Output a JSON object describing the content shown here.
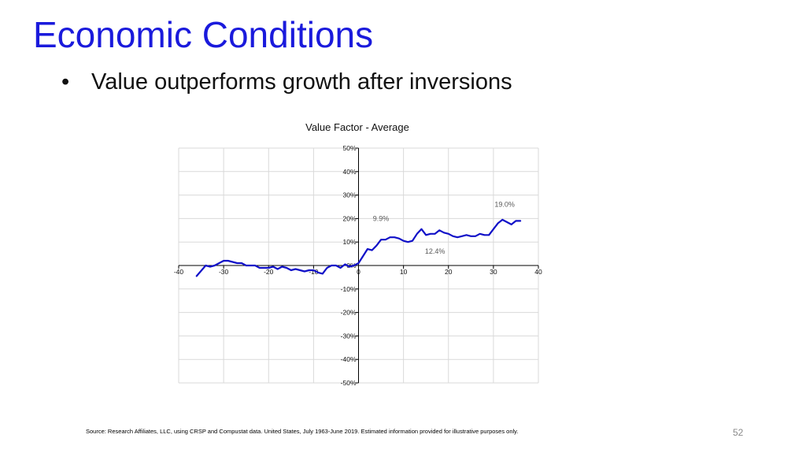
{
  "slide": {
    "title": "Economic Conditions",
    "bullet_symbol": "•",
    "bullet": "Value outperforms growth after inversions",
    "source": "Source: Research Affiliates, LLC, using CRSP and Compustat data. United States, July 1963-June 2019. Estimated information provided for illustrative purposes only.",
    "page_number": "52"
  },
  "colors": {
    "title": "#1a1adc",
    "series_line": "#1010c8",
    "gridline": "#d9d9d9",
    "axis": "#000000",
    "annotation": "#595959"
  },
  "chart_data": {
    "type": "line",
    "title": "Value Factor - Average",
    "xlabel": "",
    "ylabel": "",
    "xlim": [
      -40,
      40
    ],
    "ylim": [
      -0.5,
      0.5
    ],
    "x_ticks": [
      -40,
      -30,
      -20,
      -10,
      0,
      10,
      20,
      30,
      40
    ],
    "y_ticks": [
      -0.5,
      -0.4,
      -0.3,
      -0.2,
      -0.1,
      0,
      0.1,
      0.2,
      0.3,
      0.4,
      0.5
    ],
    "x_tick_labels": [
      "-40",
      "-30",
      "-20",
      "-10",
      "0",
      "10",
      "20",
      "30",
      "40"
    ],
    "y_tick_labels": [
      "-50%",
      "-40%",
      "-30%",
      "-20%",
      "-10%",
      "0%",
      "10%",
      "20%",
      "30%",
      "40%",
      "50%"
    ],
    "grid": true,
    "legend": "none",
    "series": [
      {
        "x": [
          -36,
          -34,
          -33,
          -32,
          -31,
          -30,
          -29,
          -28,
          -27,
          -26,
          -25,
          -24,
          -23,
          -22,
          -21,
          -20,
          -19,
          -18,
          -17,
          -16,
          -15,
          -14,
          -13,
          -12,
          -11,
          -10,
          -9,
          -8,
          -7,
          -6,
          -5,
          -4,
          -3,
          -2,
          -1,
          0,
          1,
          2,
          3,
          4,
          5,
          6,
          7,
          8,
          9,
          10,
          11,
          12,
          13,
          14,
          15,
          16,
          17,
          18,
          19,
          20,
          21,
          22,
          23,
          24,
          25,
          26,
          27,
          28,
          29,
          30,
          31,
          32,
          33,
          34,
          35,
          36
        ],
        "y": [
          -0.045,
          0.0,
          -0.005,
          0.0,
          0.01,
          0.02,
          0.02,
          0.015,
          0.01,
          0.01,
          0.0,
          0.0,
          0.0,
          -0.01,
          -0.01,
          -0.01,
          -0.005,
          -0.015,
          -0.005,
          -0.01,
          -0.02,
          -0.015,
          -0.02,
          -0.025,
          -0.02,
          -0.02,
          -0.03,
          -0.035,
          -0.01,
          0.0,
          0.0,
          -0.01,
          0.005,
          -0.005,
          0.0,
          0.01,
          0.04,
          0.07,
          0.065,
          0.085,
          0.11,
          0.11,
          0.12,
          0.12,
          0.115,
          0.105,
          0.1,
          0.105,
          0.135,
          0.155,
          0.13,
          0.135,
          0.135,
          0.15,
          0.14,
          0.135,
          0.125,
          0.12,
          0.125,
          0.13,
          0.125,
          0.125,
          0.135,
          0.13,
          0.13,
          0.155,
          0.18,
          0.195,
          0.185,
          0.175,
          0.19,
          0.19
        ]
      }
    ],
    "annotations": [
      {
        "text": "9.9%",
        "x": 5,
        "y": 0.2
      },
      {
        "text": "12.4%",
        "x": 17,
        "y": 0.06
      },
      {
        "text": "19.0%",
        "x": 32.5,
        "y": 0.26
      }
    ]
  }
}
